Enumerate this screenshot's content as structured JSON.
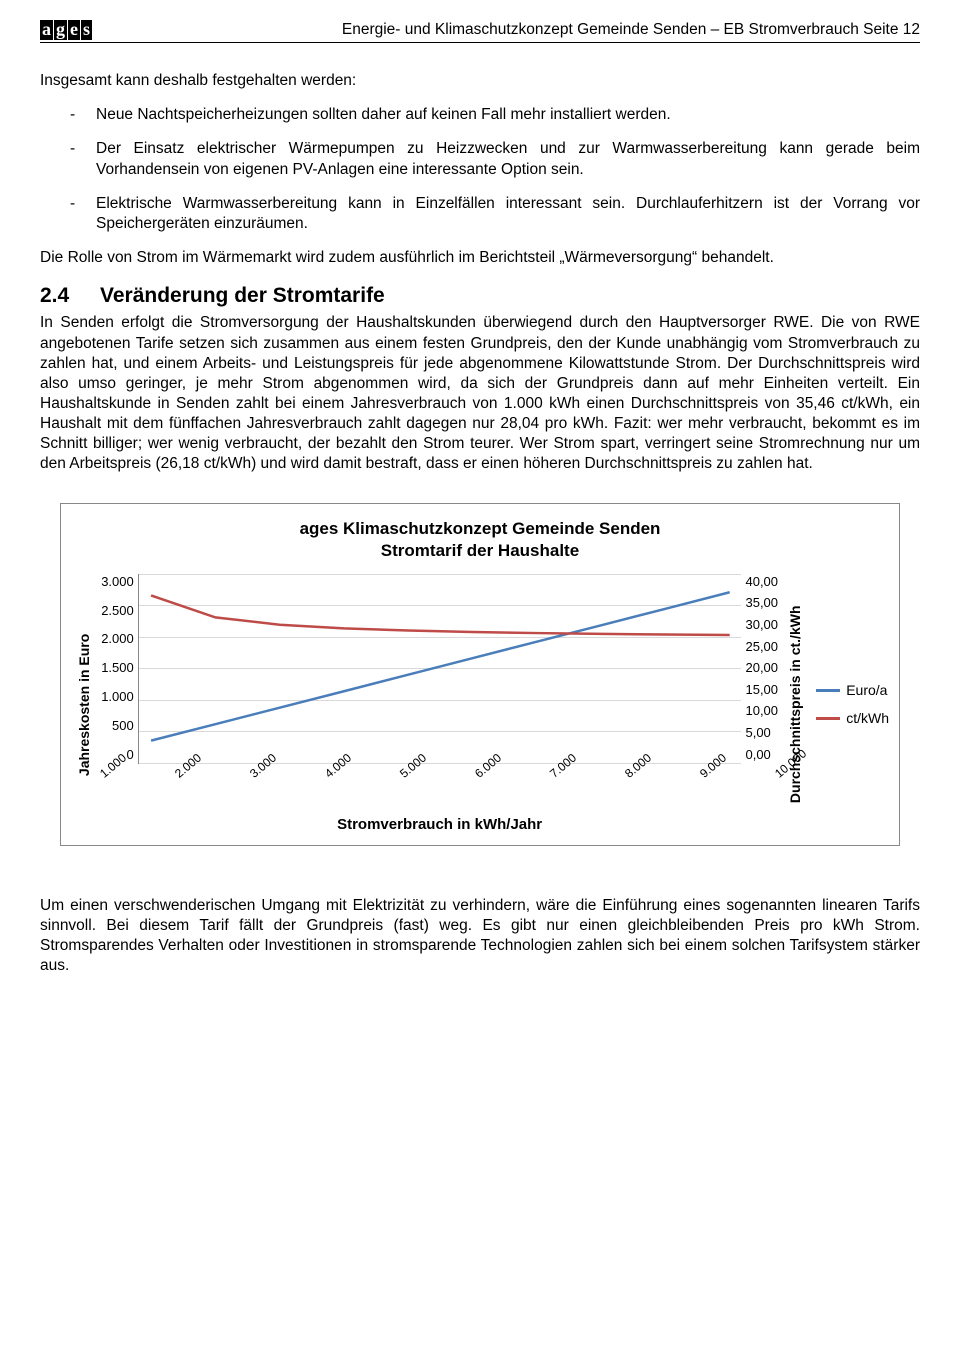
{
  "header": {
    "logo_letters": [
      "a",
      "g",
      "e",
      "s"
    ],
    "text": "Energie- und Klimaschutzkonzept Gemeinde Senden – EB Stromverbrauch Seite 12"
  },
  "intro": "Insgesamt kann deshalb festgehalten werden:",
  "bullets": [
    "Neue Nachtspeicherheizungen sollten daher auf keinen Fall mehr installiert werden.",
    "Der Einsatz elektrischer Wärmepumpen zu Heizzwecken und zur Warmwasserbereitung kann gerade beim Vorhandensein von eigenen PV-Anlagen eine interessante Option sein.",
    "Elektrische Warmwasserbereitung kann in Einzelfällen interessant sein. Durchlauferhitzern ist der Vorrang vor Speichergeräten einzuräumen."
  ],
  "para1": "Die Rolle von Strom im Wärmemarkt wird zudem ausführlich im Berichtsteil „Wärmeversorgung“ behandelt.",
  "section": {
    "num": "2.4",
    "title": "Veränderung der Stromtarife"
  },
  "para2": "In Senden erfolgt die Stromversorgung der Haushaltskunden überwiegend durch den Hauptversorger RWE. Die von RWE angebotenen Tarife setzen sich zusammen aus einem festen Grundpreis, den der Kunde unabhängig vom Stromverbrauch zu zahlen hat, und einem Arbeits- und Leistungspreis für jede abgenommene Kilowattstunde Strom. Der Durchschnittspreis wird also umso geringer, je mehr Strom abgenommen wird, da sich der Grundpreis dann auf mehr Einheiten verteilt. Ein Haushaltskunde in Senden zahlt bei einem Jahresverbrauch von 1.000 kWh einen Durchschnittspreis von 35,46 ct/kWh, ein Haushalt mit dem fünffachen Jahresverbrauch zahlt dagegen nur 28,04 pro kWh. Fazit: wer mehr verbraucht, bekommt es im Schnitt billiger; wer wenig verbraucht, der bezahlt den Strom teurer. Wer Strom spart, verringert seine Stromrechnung nur um den Arbeitspreis (26,18 ct/kWh) und wird damit bestraft, dass er einen höheren Durchschnittspreis zu zahlen hat.",
  "para3": "Um einen verschwenderischen Umgang mit Elektrizität zu verhindern, wäre die Einführung eines sogenannten linearen Tarifs sinnvoll. Bei diesem Tarif fällt der Grundpreis (fast) weg. Es gibt nur einen gleichbleibenden Preis pro kWh Strom. Stromsparendes Verhalten oder Investitionen in stromsparende Technologien zahlen sich bei einem solchen Tarifsystem stärker aus.",
  "chart": {
    "type": "line",
    "title_line1": "ages Klimaschutzkonzept Gemeinde Senden",
    "title_line2": "Stromtarif der Haushalte",
    "ylabel_left": "Jahreskosten in Euro",
    "ylabel_right": "Durchschnittspreis in ct./kWh",
    "xlabel": "Stromverbrauch in kWh/Jahr",
    "x_categories": [
      "1.000",
      "2.000",
      "3.000",
      "4.000",
      "5.000",
      "6.000",
      "7.000",
      "8.000",
      "9.000",
      "10.000"
    ],
    "y_left": {
      "min": 0,
      "max": 3000,
      "ticks": [
        "3.000",
        "2.500",
        "2.000",
        "1.500",
        "1.000",
        "500",
        "0"
      ]
    },
    "y_right": {
      "min": 0,
      "max": 40,
      "ticks": [
        "40,00",
        "35,00",
        "30,00",
        "25,00",
        "20,00",
        "15,00",
        "10,00",
        "5,00",
        "0,00"
      ]
    },
    "grid_color": "#d9d9d9",
    "background_color": "#ffffff",
    "series": [
      {
        "name": "Euro/a",
        "color": "#4a7ebb",
        "axis": "left",
        "values": [
          355,
          616,
          878,
          1139,
          1402,
          1664,
          1925,
          2186,
          2448,
          2710
        ]
      },
      {
        "name": "ct/kWh",
        "color": "#be4b48",
        "axis": "right",
        "values": [
          35.46,
          30.82,
          29.27,
          28.49,
          28.04,
          27.72,
          27.5,
          27.33,
          27.2,
          27.1
        ]
      }
    ],
    "line_width": 2.5,
    "label_fontsize": 14,
    "title_fontsize": 17
  }
}
